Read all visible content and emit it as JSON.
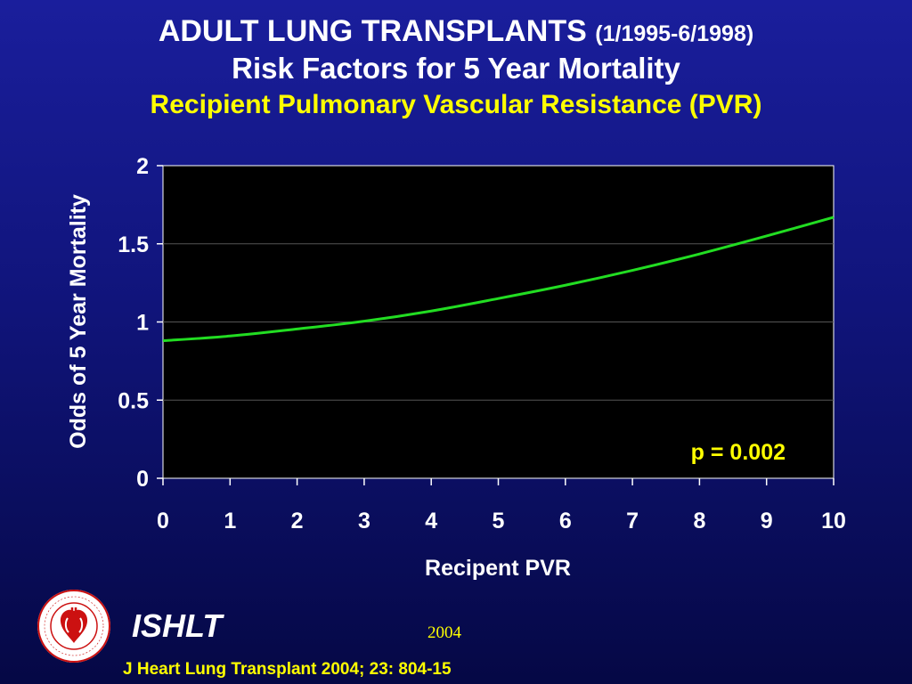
{
  "header": {
    "title_main": "ADULT LUNG TRANSPLANTS",
    "title_dates": "(1/1995-6/1998)",
    "title_line2": "Risk Factors for 5 Year Mortality",
    "subtitle": "Recipient Pulmonary Vascular Resistance (PVR)"
  },
  "chart_data": {
    "type": "line",
    "xlabel": "Recipent PVR",
    "ylabel": "Odds of 5 Year Mortality",
    "xlim": [
      0,
      10
    ],
    "ylim": [
      0,
      2
    ],
    "x_ticks": [
      "0",
      "1",
      "2",
      "3",
      "4",
      "5",
      "6",
      "7",
      "8",
      "9",
      "10"
    ],
    "y_ticks": [
      "0",
      "0.5",
      "1",
      "1.5",
      "2"
    ],
    "grid": true,
    "annotation": "p = 0.002",
    "series": [
      {
        "color": "#22dd22",
        "x": [
          0,
          1,
          2,
          3,
          4,
          5,
          6,
          7,
          8,
          9,
          10
        ],
        "y": [
          0.88,
          0.91,
          0.955,
          1.005,
          1.07,
          1.15,
          1.235,
          1.33,
          1.435,
          1.55,
          1.67
        ]
      }
    ]
  },
  "footer": {
    "org": "ISHLT",
    "year": "2004",
    "citation": "J Heart Lung Transplant 2004; 23: 804-15",
    "logo_ring_text": "INTERNATIONAL SOCIETY FOR HEART & LUNG TRANSPLANTATION"
  },
  "colors": {
    "title": "#ffffff",
    "subtitle": "#ffff00",
    "plot_bg": "#000000",
    "line": "#22dd22",
    "annotation": "#ffff00"
  }
}
